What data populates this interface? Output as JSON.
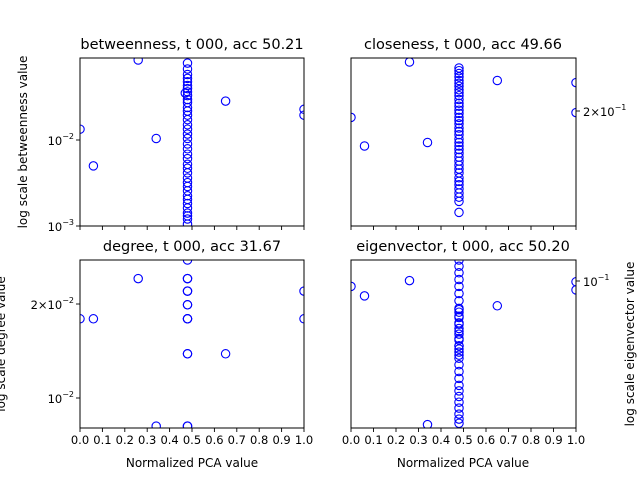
{
  "colors": {
    "marker": "#0000ff",
    "frame": "#000000",
    "background": "#ffffff"
  },
  "chart_data": [
    {
      "type": "scatter",
      "id": "betweenness",
      "title": "betweenness, t 000, acc 50.21",
      "xlabel": "",
      "ylabel": "log scale betweenness value",
      "yscale": "log",
      "xlim": [
        0,
        1
      ],
      "ylim": [
        0.001,
        0.08
      ],
      "xticklabels": [],
      "yticklabels": [
        {
          "value": 0.01,
          "label": "10^-2"
        },
        {
          "value": 0.001,
          "label": "10^-3"
        }
      ],
      "x": [
        0.0,
        0.06,
        0.26,
        0.34,
        0.48,
        0.48,
        0.48,
        0.48,
        0.48,
        0.48,
        0.48,
        0.48,
        0.48,
        0.48,
        0.48,
        0.48,
        0.48,
        0.48,
        0.48,
        0.48,
        0.48,
        0.48,
        0.48,
        0.48,
        0.48,
        0.48,
        0.48,
        0.48,
        0.48,
        0.48,
        0.48,
        0.48,
        0.48,
        0.48,
        0.48,
        0.48,
        0.48,
        0.48,
        0.48,
        0.48,
        0.48,
        0.48,
        0.47,
        0.65,
        1.0,
        1.0
      ],
      "y": [
        0.0125,
        0.0048,
        0.076,
        0.0098,
        0.07,
        0.06,
        0.052,
        0.047,
        0.043,
        0.039,
        0.036,
        0.033,
        0.03,
        0.027,
        0.025,
        0.022,
        0.02,
        0.018,
        0.016,
        0.014,
        0.0125,
        0.011,
        0.0098,
        0.0085,
        0.0075,
        0.0065,
        0.0058,
        0.005,
        0.0045,
        0.004,
        0.0035,
        0.0031,
        0.0028,
        0.0025,
        0.0022,
        0.002,
        0.0018,
        0.0016,
        0.0014,
        0.0013,
        0.0012,
        0.00105,
        0.032,
        0.026,
        0.021,
        0.018
      ]
    },
    {
      "type": "scatter",
      "id": "closeness",
      "title": "closeness, t 000, acc 49.66",
      "xlabel": "",
      "ylabel": "",
      "yscale": "log",
      "xlim": [
        0,
        1
      ],
      "ylim": [
        0.1255,
        0.223
      ],
      "xticklabels": [],
      "yticklabels": [
        {
          "value": 0.2,
          "label": "2×10^-1"
        }
      ],
      "x": [
        0.0,
        0.06,
        0.26,
        0.34,
        0.48,
        0.48,
        0.48,
        0.48,
        0.48,
        0.48,
        0.48,
        0.48,
        0.48,
        0.48,
        0.48,
        0.48,
        0.48,
        0.48,
        0.48,
        0.48,
        0.48,
        0.48,
        0.48,
        0.48,
        0.48,
        0.48,
        0.48,
        0.48,
        0.48,
        0.48,
        0.48,
        0.48,
        0.48,
        0.48,
        0.48,
        0.48,
        0.48,
        0.48,
        0.48,
        0.48,
        0.48,
        0.48,
        0.48,
        0.65,
        1.0,
        1.0
      ],
      "y": [
        0.182,
        0.165,
        0.22,
        0.167,
        0.2155,
        0.2135,
        0.2115,
        0.209,
        0.2065,
        0.2045,
        0.2025,
        0.2,
        0.198,
        0.196,
        0.1935,
        0.191,
        0.189,
        0.1865,
        0.1845,
        0.182,
        0.18,
        0.178,
        0.1755,
        0.1735,
        0.1715,
        0.169,
        0.167,
        0.165,
        0.163,
        0.161,
        0.1588,
        0.1567,
        0.1545,
        0.1525,
        0.1505,
        0.148,
        0.1462,
        0.1445,
        0.1425,
        0.1405,
        0.1385,
        0.1365,
        0.1315,
        0.2065,
        0.205,
        0.185
      ]
    },
    {
      "type": "scatter",
      "id": "degree",
      "title": "degree, t 000, acc 31.67",
      "xlabel": "Normalized PCA value",
      "ylabel": "log scale degree value",
      "yscale": "log",
      "xlim": [
        0,
        1
      ],
      "ylim": [
        0.0082,
        0.0245
      ],
      "xticklabels": [
        "0.0",
        "0.1",
        "0.2",
        "0.3",
        "0.4",
        "0.5",
        "0.6",
        "0.7",
        "0.8",
        "0.9",
        "1.0"
      ],
      "yticklabels": [
        {
          "value": 0.02,
          "label": "2×10^-2"
        },
        {
          "value": 0.01,
          "label": "10^-2"
        }
      ],
      "x": [
        0.0,
        0.06,
        0.26,
        0.34,
        0.48,
        0.48,
        0.48,
        0.48,
        0.48,
        0.48,
        0.48,
        0.48,
        0.48,
        0.48,
        0.48,
        0.48,
        0.48,
        0.48,
        0.65,
        1.0,
        1.0
      ],
      "y": [
        0.0167,
        0.0167,
        0.0217,
        0.0083,
        0.0245,
        0.0217,
        0.0217,
        0.02,
        0.02,
        0.0183,
        0.0183,
        0.0167,
        0.0167,
        0.0167,
        0.0133,
        0.0133,
        0.0083,
        0.0083,
        0.0133,
        0.02,
        0.0167
      ]
    },
    {
      "type": "scatter",
      "id": "eigenvector",
      "title": "eigenvector, t 000, acc 50.20",
      "xlabel": "Normalized PCA value",
      "ylabel": "log scale eigenvector value",
      "yscale": "log",
      "xlim": [
        0,
        1
      ],
      "ylim": [
        0.0527,
        0.11
      ],
      "xticklabels": [
        "0.0",
        "0.1",
        "0.2",
        "0.3",
        "0.4",
        "0.5",
        "0.6",
        "0.7",
        "0.8",
        "0.9",
        "1.0"
      ],
      "yticklabels": [
        {
          "value": 0.1,
          "label": "10^-1"
        }
      ],
      "x": [
        0.0,
        0.06,
        0.26,
        0.34,
        0.48,
        0.48,
        0.48,
        0.48,
        0.48,
        0.48,
        0.48,
        0.48,
        0.48,
        0.48,
        0.48,
        0.48,
        0.48,
        0.48,
        0.48,
        0.48,
        0.48,
        0.48,
        0.48,
        0.48,
        0.48,
        0.48,
        0.48,
        0.48,
        0.48,
        0.48,
        0.48,
        0.48,
        0.48,
        0.48,
        0.48,
        0.48,
        0.48,
        0.48,
        0.48,
        0.48,
        0.65,
        1.0,
        1.0
      ],
      "y": [
        0.098,
        0.094,
        0.1005,
        0.0535,
        0.11,
        0.107,
        0.104,
        0.101,
        0.098,
        0.095,
        0.092,
        0.089,
        0.086,
        0.083,
        0.0805,
        0.078,
        0.0755,
        0.0735,
        0.0715,
        0.0695,
        0.0675,
        0.0655,
        0.0635,
        0.062,
        0.0605,
        0.059,
        0.0575,
        0.056,
        0.0548,
        0.0538,
        0.0885,
        0.0875,
        0.0855,
        0.0835,
        0.0815,
        0.0795,
        0.0775,
        0.0755,
        0.0745,
        0.0725,
        0.09,
        0.1,
        0.0965
      ]
    }
  ]
}
